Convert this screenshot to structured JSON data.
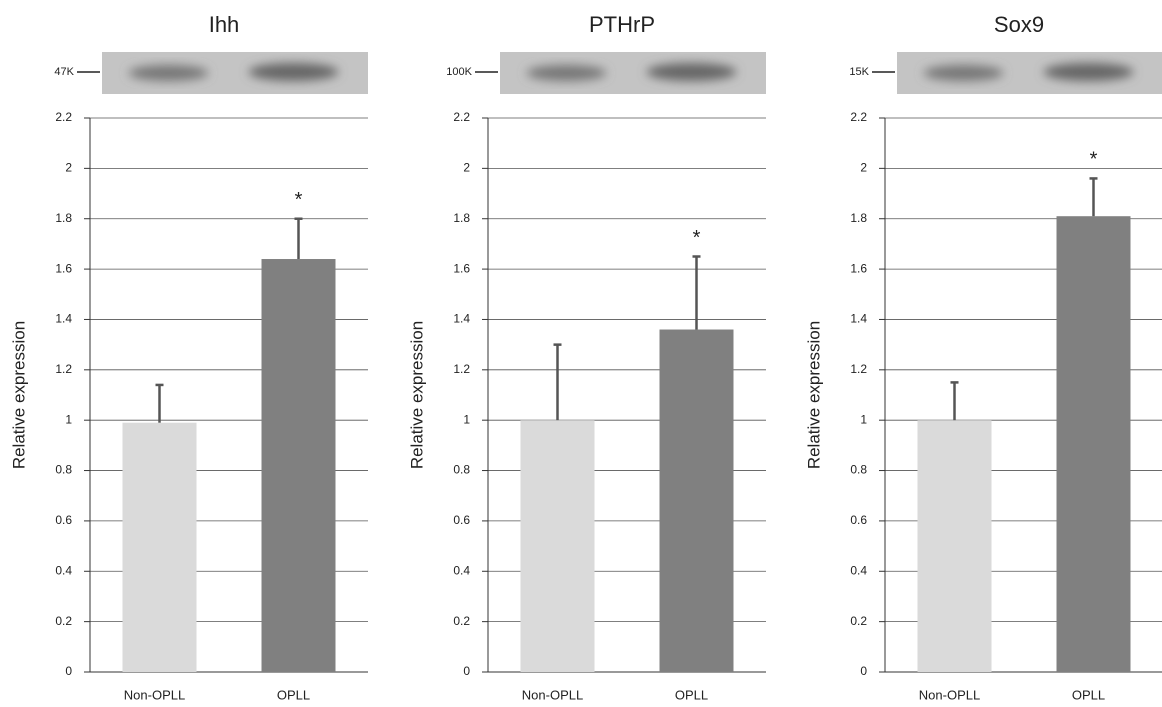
{
  "chart_data": [
    {
      "type": "bar",
      "title": "Ihh",
      "blot_label": "47K",
      "y_label": "Relative expression",
      "categories": [
        "Non-OPLL",
        "OPLL"
      ],
      "values": [
        0.99,
        1.64
      ],
      "errors": [
        0.15,
        0.16
      ],
      "colors": [
        "#dadada",
        "#808080"
      ],
      "error_color": "#555555",
      "annotation": "*",
      "ylim": [
        0,
        2.2
      ],
      "yticks": [
        0,
        0.2,
        0.4,
        0.6,
        0.8,
        1,
        1.2,
        1.4,
        1.6,
        1.8,
        2,
        2.2
      ],
      "grid": true
    },
    {
      "type": "bar",
      "title": "PTHrP",
      "blot_label": "100K",
      "y_label": "Relative expression",
      "categories": [
        "Non-OPLL",
        "OPLL"
      ],
      "values": [
        1.0,
        1.36
      ],
      "errors": [
        0.3,
        0.29
      ],
      "colors": [
        "#dadada",
        "#808080"
      ],
      "error_color": "#555555",
      "annotation": "*",
      "ylim": [
        0,
        2.2
      ],
      "yticks": [
        0,
        0.2,
        0.4,
        0.6,
        0.8,
        1,
        1.2,
        1.4,
        1.6,
        1.8,
        2,
        2.2
      ],
      "grid": true
    },
    {
      "type": "bar",
      "title": "Sox9",
      "blot_label": "15K",
      "y_label": "Relative expression",
      "categories": [
        "Non-OPLL",
        "OPLL"
      ],
      "values": [
        1.0,
        1.81
      ],
      "errors": [
        0.15,
        0.15
      ],
      "colors": [
        "#dadada",
        "#808080"
      ],
      "error_color": "#555555",
      "annotation": "*",
      "ylim": [
        0,
        2.2
      ],
      "yticks": [
        0,
        0.2,
        0.4,
        0.6,
        0.8,
        1,
        1.2,
        1.4,
        1.6,
        1.8,
        2,
        2.2
      ],
      "grid": true
    }
  ]
}
